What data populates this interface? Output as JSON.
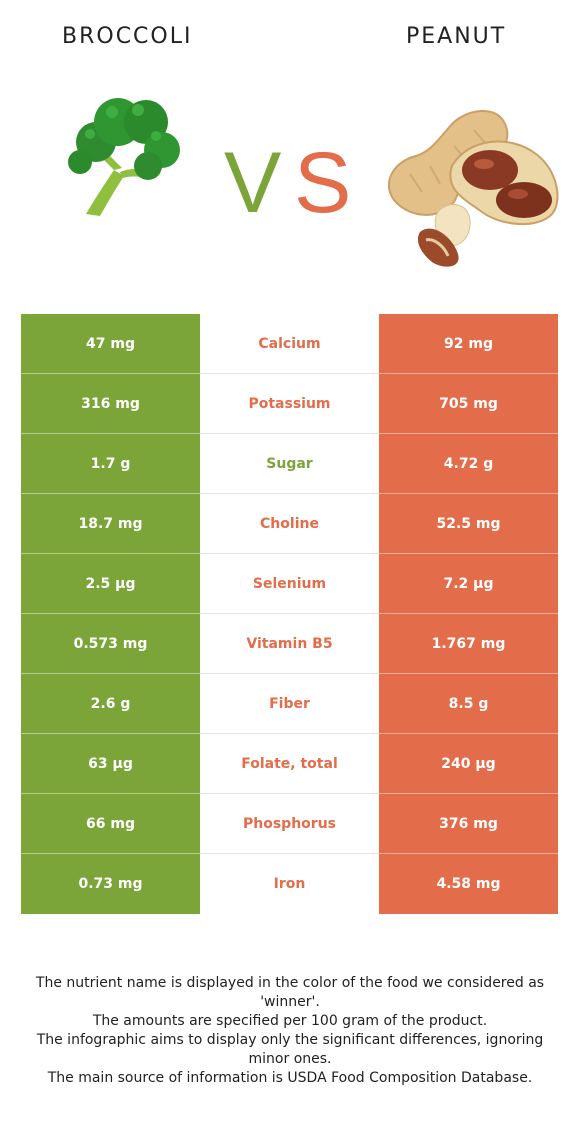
{
  "colors": {
    "broccoli": "#7ba538",
    "peanut": "#e36c4a",
    "text": "#222222"
  },
  "header": {
    "left_food": "BROCCOLI",
    "right_food": "PEANUT",
    "vs_v": "V",
    "vs_s": "S"
  },
  "images": {
    "left": "broccoli-illustration",
    "right": "peanut-illustration"
  },
  "rows": [
    {
      "left": "47 mg",
      "nutrient": "Calcium",
      "right": "92 mg",
      "winner": "peanut"
    },
    {
      "left": "316 mg",
      "nutrient": "Potassium",
      "right": "705 mg",
      "winner": "peanut"
    },
    {
      "left": "1.7 g",
      "nutrient": "Sugar",
      "right": "4.72 g",
      "winner": "broccoli"
    },
    {
      "left": "18.7 mg",
      "nutrient": "Choline",
      "right": "52.5 mg",
      "winner": "peanut"
    },
    {
      "left": "2.5 µg",
      "nutrient": "Selenium",
      "right": "7.2 µg",
      "winner": "peanut"
    },
    {
      "left": "0.573 mg",
      "nutrient": "Vitamin B5",
      "right": "1.767 mg",
      "winner": "peanut"
    },
    {
      "left": "2.6 g",
      "nutrient": "Fiber",
      "right": "8.5 g",
      "winner": "peanut"
    },
    {
      "left": "63 µg",
      "nutrient": "Folate, total",
      "right": "240 µg",
      "winner": "peanut"
    },
    {
      "left": "66 mg",
      "nutrient": "Phosphorus",
      "right": "376 mg",
      "winner": "peanut"
    },
    {
      "left": "0.73 mg",
      "nutrient": "Iron",
      "right": "4.58 mg",
      "winner": "peanut"
    }
  ],
  "footnote": [
    "The nutrient name is displayed in the color of the food we considered as 'winner'.",
    "The amounts are specified per 100 gram of the product.",
    "The infographic aims to display only the significant differences, ignoring minor ones.",
    "The main source of information is USDA Food Composition Database."
  ]
}
